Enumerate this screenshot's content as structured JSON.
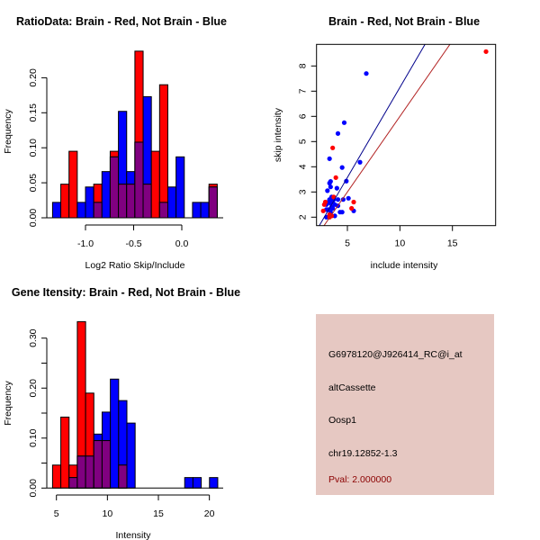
{
  "chart_data": [
    {
      "type": "bar",
      "subtype": "overlaid-histogram",
      "title": "RatioData: Brain - Red, Not Brain - Blue",
      "xlabel": "Log2 Ratio Skip/Include",
      "ylabel": "Frequency",
      "xticks": [
        "-1.0",
        "-0.5",
        "0.0"
      ],
      "xtick_values": [
        -1.0,
        -0.5,
        0.0
      ],
      "yticks": [
        "0.00",
        "0.05",
        "0.10",
        "0.15",
        "0.20"
      ],
      "ytick_values": [
        0,
        0.05,
        0.1,
        0.15,
        0.2
      ],
      "bin_start": -1.342,
      "bin_width": 0.0855,
      "series": [
        {
          "name": "Brain",
          "color": "#ff0000",
          "values": [
            0,
            0.048,
            0.095,
            0,
            0,
            0.048,
            0,
            0.095,
            0.048,
            0.048,
            0.238,
            0.048,
            0.095,
            0.19,
            0,
            0,
            0,
            0,
            0,
            0.048
          ]
        },
        {
          "name": "Not Brain",
          "color": "#0000ff",
          "values": [
            0.022,
            0,
            0,
            0.022,
            0.044,
            0.022,
            0.066,
            0.087,
            0.152,
            0.066,
            0.108,
            0.173,
            0,
            0.022,
            0.044,
            0.087,
            0,
            0.022,
            0.022,
            0.044
          ]
        }
      ],
      "overlap_color": "#800080"
    },
    {
      "type": "scatter",
      "title": "Brain - Red, Not Brain - Blue",
      "xlabel": "include intensity",
      "ylabel": "skip intensity",
      "xlim": [
        2.06,
        19.1
      ],
      "ylim": [
        1.67,
        8.86
      ],
      "xticks": [
        "5",
        "10",
        "15"
      ],
      "xtick_values": [
        5,
        10,
        15
      ],
      "yticks": [
        "2",
        "3",
        "4",
        "5",
        "6",
        "7",
        "8"
      ],
      "ytick_values": [
        2,
        3,
        4,
        5,
        6,
        7,
        8
      ],
      "series": [
        {
          "name": "Not Brain",
          "color": "#0000ff",
          "points": [
            [
              6.8,
              7.7
            ],
            [
              4.7,
              5.75
            ],
            [
              4.1,
              5.32
            ],
            [
              3.3,
              4.32
            ],
            [
              6.2,
              4.18
            ],
            [
              4.5,
              3.97
            ],
            [
              4.9,
              3.43
            ],
            [
              3.4,
              3.42
            ],
            [
              3.3,
              3.35
            ],
            [
              3.4,
              3.2
            ],
            [
              3.1,
              3.05
            ],
            [
              4.0,
              3.15
            ],
            [
              5.1,
              2.75
            ],
            [
              4.6,
              2.7
            ],
            [
              4.1,
              2.7
            ],
            [
              3.5,
              2.8
            ],
            [
              3.3,
              2.7
            ],
            [
              3.0,
              2.5
            ],
            [
              3.2,
              2.3
            ],
            [
              3.6,
              2.6
            ],
            [
              3.8,
              2.5
            ],
            [
              3.5,
              2.4
            ],
            [
              4.1,
              2.45
            ],
            [
              4.3,
              2.2
            ],
            [
              4.5,
              2.2
            ],
            [
              5.6,
              2.25
            ],
            [
              3.8,
              2.05
            ],
            [
              3.0,
              2.0
            ],
            [
              3.4,
              2.2
            ],
            [
              3.0,
              2.3
            ],
            [
              3.7,
              2.7
            ],
            [
              3.4,
              2.55
            ],
            [
              3.6,
              2.35
            ],
            [
              3.2,
              2.6
            ]
          ]
        },
        {
          "name": "Brain",
          "color": "#ff0000",
          "points": [
            [
              18.2,
              8.57
            ],
            [
              3.6,
              4.75
            ],
            [
              3.9,
              3.57
            ],
            [
              3.7,
              2.8
            ],
            [
              5.6,
              2.6
            ],
            [
              5.4,
              2.35
            ],
            [
              2.9,
              2.6
            ],
            [
              2.7,
              2.25
            ],
            [
              3.5,
              2.05
            ],
            [
              3.3,
              2.1
            ],
            [
              2.8,
              2.5
            ],
            [
              3.3,
              2.0
            ]
          ]
        }
      ],
      "lines": [
        {
          "name": "Not Brain fit",
          "color": "#00008b",
          "slope": 0.715,
          "intercept": 0
        },
        {
          "name": "Brain fit",
          "color": "#b22222",
          "slope": 0.6,
          "intercept": 0
        }
      ]
    },
    {
      "type": "bar",
      "subtype": "overlaid-histogram",
      "title": "Gene Itensity: Brain - Red, Not Brain - Blue",
      "xlabel": "Intensity",
      "ylabel": "Frequency",
      "xticks": [
        "5",
        "10",
        "15",
        "20"
      ],
      "xtick_values": [
        5,
        10,
        15,
        20
      ],
      "yticks": [
        "0.00",
        "0.10",
        "0.20",
        "0.30"
      ],
      "ytick_values": [
        0,
        0.1,
        0.2,
        0.3
      ],
      "yminor_values": [
        0.05,
        0.15,
        0.25
      ],
      "bin_start": 4.62,
      "bin_width": 0.81,
      "series": [
        {
          "name": "Brain",
          "color": "#ff0000",
          "values": [
            0.046,
            0.142,
            0.046,
            0.333,
            0.19,
            0.095,
            0.095,
            0,
            0.046,
            0,
            0,
            0,
            0,
            0,
            0,
            0,
            0,
            0,
            0,
            0
          ]
        },
        {
          "name": "Not Brain",
          "color": "#0000ff",
          "values": [
            0,
            0,
            0.021,
            0.064,
            0.064,
            0.108,
            0.152,
            0.218,
            0.175,
            0.13,
            0,
            0,
            0,
            0,
            0,
            0,
            0.021,
            0.021,
            0,
            0.021
          ]
        }
      ],
      "overlap_color": "#800080"
    }
  ],
  "info_panel": {
    "background": "#e6c8c2",
    "probe_id": "G6978120@J926414_RC@i_at",
    "event_type": "altCassette",
    "gene": "Oosp1",
    "location": "chr19.12852-1.3",
    "pval": "Pval: 2.000000",
    "pval_color": "#8b0000"
  }
}
